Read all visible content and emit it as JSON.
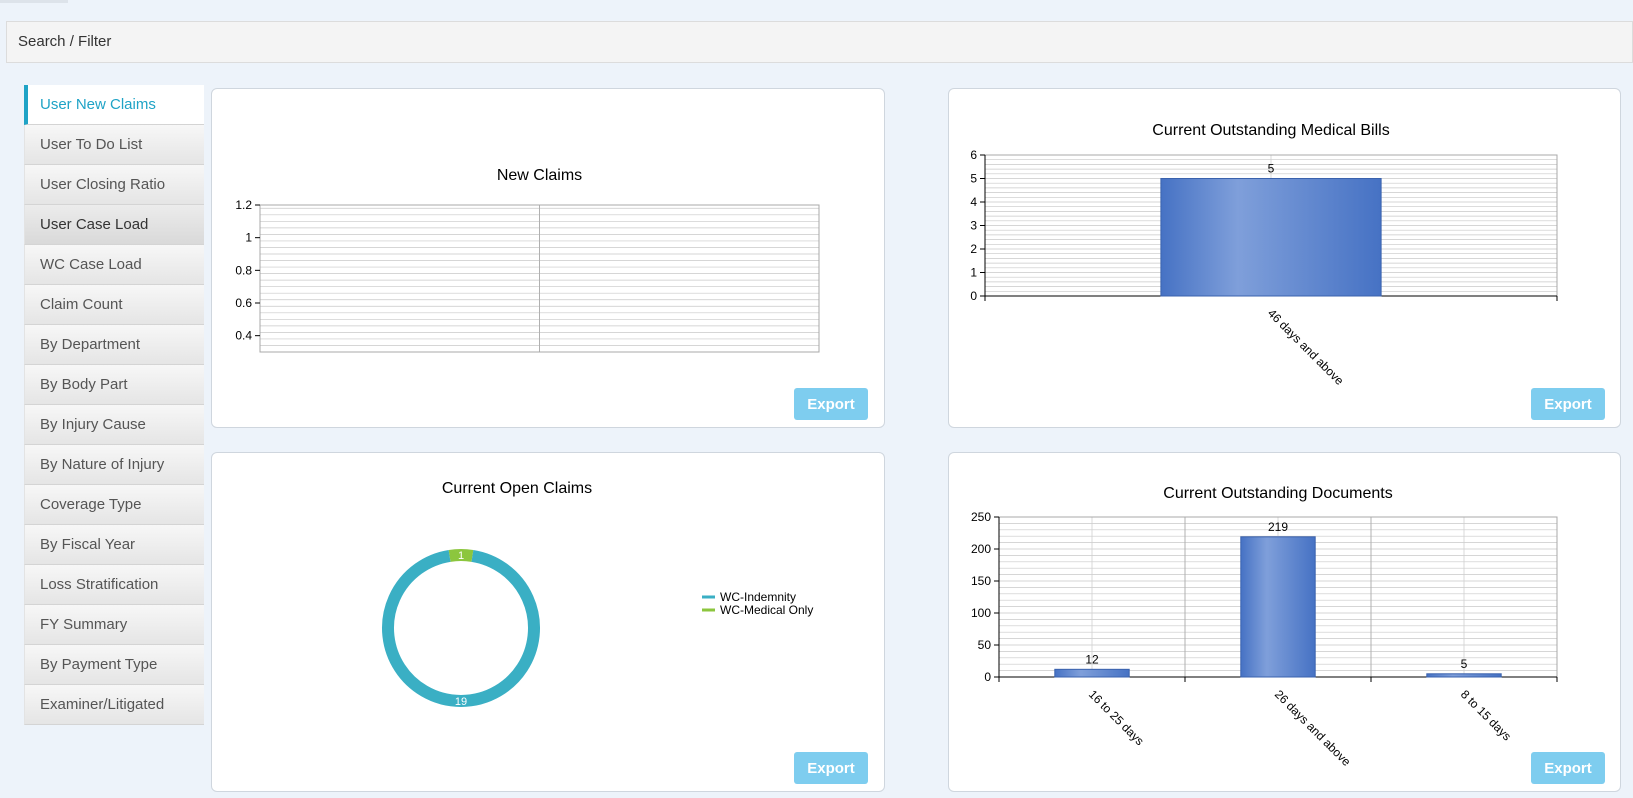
{
  "filter_bar": {
    "label": "Search / Filter"
  },
  "sidebar": {
    "items": [
      {
        "label": "User New Claims"
      },
      {
        "label": "User To Do List"
      },
      {
        "label": "User Closing Ratio"
      },
      {
        "label": "User Case Load"
      },
      {
        "label": "WC Case Load"
      },
      {
        "label": "Claim Count"
      },
      {
        "label": "By Department"
      },
      {
        "label": "By Body Part"
      },
      {
        "label": "By Injury Cause"
      },
      {
        "label": "By Nature of Injury"
      },
      {
        "label": "Coverage Type"
      },
      {
        "label": "By Fiscal Year"
      },
      {
        "label": "Loss Stratification"
      },
      {
        "label": "FY Summary"
      },
      {
        "label": "By Payment Type"
      },
      {
        "label": "Examiner/Litigated"
      }
    ],
    "active_index": 0
  },
  "export_label": "Export",
  "colors": {
    "accent": "#1fa3c6",
    "bar": "#4a78c8",
    "indemnity": "#3aafc4",
    "medical": "#8cc63e",
    "export_button": "#7ecdef"
  },
  "chart_data": [
    {
      "type": "bar",
      "title": "New Claims",
      "categories": [],
      "values": [],
      "yticks": [
        "0.4",
        "0.6",
        "0.8",
        "1",
        "1.2"
      ],
      "ylim": [
        0.3,
        1.2
      ],
      "grid": true
    },
    {
      "type": "bar",
      "title": "Current Outstanding Medical Bills",
      "categories": [
        "46 days and above"
      ],
      "values": [
        5
      ],
      "ylim": [
        0,
        6
      ],
      "yticks": [
        0,
        1,
        2,
        3,
        4,
        5,
        6
      ],
      "grid": true
    },
    {
      "type": "pie",
      "donut": true,
      "title": "Current Open Claims",
      "series": [
        {
          "name": "WC-Indemnity",
          "value": 19,
          "color": "#3aafc4"
        },
        {
          "name": "WC-Medical Only",
          "value": 1,
          "color": "#8cc63e"
        }
      ],
      "legend": "right"
    },
    {
      "type": "bar",
      "title": "Current Outstanding Documents",
      "categories": [
        "16 to 25 days",
        "26 days and above",
        "8 to 15 days"
      ],
      "values": [
        12,
        219,
        5
      ],
      "ylim": [
        0,
        250
      ],
      "yticks": [
        0,
        50,
        100,
        150,
        200,
        250
      ],
      "grid": true
    }
  ]
}
